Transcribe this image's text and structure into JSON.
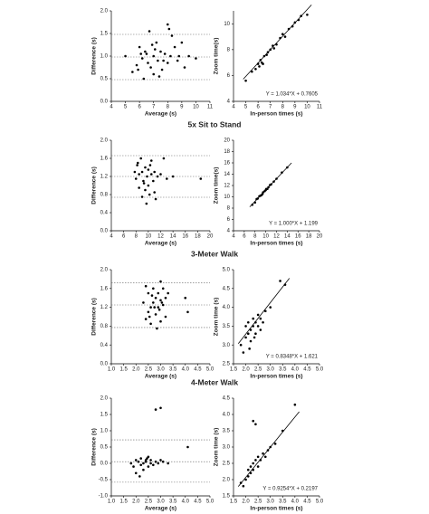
{
  "chart_data": [
    {
      "type": "scatter",
      "x_label": "Average (s)",
      "y_label": "Difference (s)",
      "xlim": [
        4,
        11
      ],
      "xticks": [
        4,
        5,
        6,
        7,
        8,
        9,
        10,
        11
      ],
      "ylim": [
        0,
        2
      ],
      "yticks": [
        {
          "value": 0,
          "label": "0.0"
        },
        0.5,
        {
          "value": 1,
          "label": "1.0"
        },
        1.5,
        {
          "value": 2,
          "label": "2.0"
        }
      ],
      "reference_lines": [
        1.48,
        0.98,
        0.48
      ],
      "x": [
        5,
        5.5,
        5.8,
        6,
        6.2,
        6.3,
        6.5,
        6.7,
        6.8,
        7,
        7,
        7.2,
        7.3,
        7.5,
        7.6,
        7.8,
        8,
        8,
        8.2,
        8.3,
        8.5,
        8.7,
        9,
        9.2,
        9.5,
        10,
        6.1,
        6.6,
        7.1,
        7.7,
        8.1,
        5.9,
        6.4,
        7.4,
        8.8,
        6.9
      ],
      "values": [
        1.0,
        0.65,
        0.8,
        1.2,
        0.95,
        0.5,
        1.05,
        1.55,
        0.75,
        1.0,
        0.6,
        1.3,
        0.9,
        1.1,
        0.7,
        1.05,
        1.7,
        0.85,
        1.0,
        1.45,
        1.2,
        0.9,
        1.3,
        0.75,
        1.0,
        0.95,
        1.05,
        0.85,
        1.15,
        0.9,
        1.6,
        0.7,
        1.1,
        0.55,
        1.0,
        1.25
      ]
    },
    {
      "type": "scatter",
      "x_label": "In-person times (s)",
      "y_label": "Zoom time(s)",
      "xlim": [
        4,
        11
      ],
      "xticks": [
        4,
        5,
        6,
        7,
        8,
        9,
        10,
        11
      ],
      "ylim": [
        4,
        11
      ],
      "yticks": [
        4,
        6,
        8,
        10
      ],
      "fit": {
        "slope": 1.034,
        "intercept": 0.7605
      },
      "annotation": "Y = 1.034*X + 0.7605",
      "x": [
        5,
        5.5,
        5.8,
        6,
        6.1,
        6.2,
        6.3,
        6.5,
        6.7,
        7,
        7.2,
        7.5,
        7.8,
        8,
        8.2,
        8.5,
        8.8,
        9,
        9.3,
        9.5,
        10,
        6.4,
        6.8,
        7.3
      ],
      "values": [
        5.6,
        6.3,
        6.5,
        6.9,
        6.7,
        7.2,
        7.0,
        7.5,
        7.6,
        8.0,
        8.3,
        8.4,
        8.9,
        9.2,
        9.0,
        9.6,
        9.8,
        10.1,
        10.3,
        10.6,
        10.7,
        6.9,
        7.8,
        8.1
      ]
    },
    {
      "type": "scatter",
      "title": "5x Sit to Stand",
      "x_label": "Average (s)",
      "y_label": "Difference (s)",
      "xlim": [
        4,
        20
      ],
      "xticks": [
        4,
        6,
        8,
        10,
        12,
        14,
        16,
        18,
        20
      ],
      "ylim": [
        0,
        2
      ],
      "yticks": [
        {
          "value": 0,
          "label": "0.0"
        },
        0.4,
        0.8,
        1.2,
        1.6,
        {
          "value": 2,
          "label": "2.0"
        }
      ],
      "reference_lines": [
        1.66,
        1.2,
        0.74
      ],
      "x": [
        7.8,
        8,
        8.2,
        8.5,
        8.5,
        8.8,
        9,
        9,
        9.2,
        9.5,
        9.5,
        9.8,
        10,
        10,
        10.2,
        10.5,
        10.5,
        10.8,
        11,
        11,
        11.5,
        12,
        12.5,
        13,
        14,
        9.3,
        9.7,
        10.3,
        8.3,
        11.2,
        18.5
      ],
      "values": [
        1.3,
        1.15,
        1.45,
        1.25,
        0.95,
        1.6,
        1.3,
        0.75,
        1.1,
        1.4,
        0.9,
        1.2,
        1.35,
        1.0,
        0.8,
        1.25,
        1.55,
        1.1,
        1.3,
        0.85,
        1.2,
        1.25,
        1.6,
        1.15,
        1.2,
        1.05,
        0.6,
        1.45,
        1.5,
        0.7,
        1.15
      ]
    },
    {
      "type": "scatter",
      "x_label": "In-person times (s)",
      "y_label": "Zoom time(s)",
      "xlim": [
        4,
        20
      ],
      "xticks": [
        4,
        6,
        8,
        10,
        12,
        14,
        16,
        18,
        20
      ],
      "ylim": [
        4,
        20
      ],
      "yticks": [
        4,
        6,
        8,
        10,
        12,
        14,
        16,
        18,
        20
      ],
      "fit": {
        "slope": 1.0,
        "intercept": 1.199
      },
      "annotation": "Y = 1.000*X + 1.199",
      "x": [
        7.5,
        8,
        8.3,
        8.5,
        8.8,
        9,
        9.2,
        9.5,
        9.8,
        10,
        10.3,
        10.5,
        10.8,
        11,
        11.5,
        12,
        13,
        14,
        9.4,
        10.1
      ],
      "values": [
        8.6,
        9.0,
        9.6,
        9.7,
        10.1,
        10.2,
        10.3,
        10.8,
        11.0,
        11.2,
        11.4,
        11.7,
        12.1,
        12.2,
        12.7,
        13.2,
        14.3,
        15.2,
        10.5,
        11.4
      ]
    },
    {
      "type": "scatter",
      "title": "3-Meter Walk",
      "x_label": "Average (s)",
      "y_label": "Difference (s)",
      "xlim": [
        1,
        5
      ],
      "xticks": [
        {
          "value": 1,
          "label": "1.0"
        },
        1.5,
        {
          "value": 2,
          "label": "2.0"
        },
        2.5,
        {
          "value": 3,
          "label": "3.0"
        },
        3.5,
        {
          "value": 4,
          "label": "4.0"
        },
        4.5,
        {
          "value": 5,
          "label": "5.0"
        }
      ],
      "ylim": [
        0,
        2
      ],
      "yticks": [
        {
          "value": 0,
          "label": "0.0"
        },
        0.4,
        0.8,
        1.2,
        1.6,
        {
          "value": 2,
          "label": "2.0"
        }
      ],
      "reference_lines": [
        1.72,
        1.25,
        0.77
      ],
      "x": [
        2.3,
        2.4,
        2.5,
        2.5,
        2.6,
        2.6,
        2.7,
        2.7,
        2.8,
        2.8,
        2.9,
        2.9,
        3.0,
        3.0,
        3.0,
        3.1,
        3.1,
        3.2,
        3.2,
        3.3,
        2.4,
        2.65,
        2.85,
        2.95,
        3.05,
        4.0,
        4.1,
        2.55,
        2.75
      ],
      "values": [
        1.3,
        0.95,
        1.5,
        1.1,
        1.2,
        0.85,
        1.6,
        1.3,
        1.4,
        1.05,
        1.5,
        1.2,
        1.75,
        1.35,
        0.9,
        1.25,
        1.6,
        1.0,
        1.4,
        1.5,
        1.65,
        1.45,
        0.75,
        1.15,
        1.3,
        1.4,
        1.1,
        1.0,
        1.2
      ]
    },
    {
      "type": "scatter",
      "x_label": "In-person times (s)",
      "y_label": "Zoom time (s)",
      "xlim": [
        1.5,
        5
      ],
      "xticks": [
        1.5,
        {
          "value": 2,
          "label": "2.0"
        },
        2.5,
        {
          "value": 3,
          "label": "3.0"
        },
        3.5,
        {
          "value": 4,
          "label": "4.0"
        },
        4.5,
        {
          "value": 5,
          "label": "5.0"
        }
      ],
      "ylim": [
        2.5,
        5
      ],
      "yticks": [
        2.5,
        {
          "value": 3,
          "label": "3.0"
        },
        3.5,
        {
          "value": 4,
          "label": "4.0"
        },
        4.5,
        {
          "value": 5,
          "label": "5.0"
        }
      ],
      "fit": {
        "slope": 0.8348,
        "intercept": 1.621
      },
      "annotation": "Y = 0.8348*X + 1.621",
      "x": [
        1.8,
        1.9,
        2.0,
        2.0,
        2.1,
        2.1,
        2.2,
        2.2,
        2.3,
        2.3,
        2.4,
        2.4,
        2.5,
        2.5,
        2.6,
        2.6,
        2.7,
        2.8,
        3.0,
        3.4,
        3.6,
        2.15,
        2.35
      ],
      "values": [
        3.0,
        2.8,
        3.5,
        3.2,
        3.3,
        3.6,
        3.4,
        3.1,
        3.7,
        3.5,
        3.6,
        3.3,
        3.8,
        3.5,
        3.7,
        3.4,
        3.6,
        3.9,
        4.0,
        4.7,
        4.6,
        2.9,
        3.2
      ]
    },
    {
      "type": "scatter",
      "title": "4-Meter Walk",
      "x_label": "Average (s)",
      "y_label": "Difference (s)",
      "xlim": [
        1,
        5
      ],
      "xticks": [
        {
          "value": 1,
          "label": "1.0"
        },
        1.5,
        {
          "value": 2,
          "label": "2.0"
        },
        2.5,
        {
          "value": 3,
          "label": "3.0"
        },
        3.5,
        {
          "value": 4,
          "label": "4.0"
        },
        4.5,
        {
          "value": 5,
          "label": "5.0"
        }
      ],
      "ylim": [
        -1,
        2
      ],
      "yticks": [
        {
          "value": -1,
          "label": "-1.0"
        },
        -0.5,
        {
          "value": 0,
          "label": "0.0"
        },
        0.5,
        {
          "value": 1,
          "label": "1.0"
        },
        1.5,
        {
          "value": 2,
          "label": "2.0"
        }
      ],
      "reference_lines": [
        0.72,
        0.05,
        -0.58
      ],
      "x": [
        1.8,
        1.9,
        2.0,
        2.0,
        2.1,
        2.2,
        2.2,
        2.3,
        2.3,
        2.4,
        2.4,
        2.5,
        2.5,
        2.6,
        2.6,
        2.7,
        2.8,
        2.9,
        3.0,
        3.1,
        3.3,
        2.8,
        3.0,
        4.1,
        2.15,
        2.45
      ],
      "values": [
        0.0,
        -0.1,
        0.1,
        -0.3,
        0.05,
        -0.05,
        0.15,
        0.0,
        -0.2,
        0.1,
        0.05,
        -0.1,
        0.2,
        0.0,
        0.1,
        -0.05,
        0.05,
        0.0,
        0.1,
        0.05,
        0.0,
        1.65,
        1.7,
        0.5,
        -0.4,
        0.15
      ]
    },
    {
      "type": "scatter",
      "x_label": "In-person times (s)",
      "y_label": "Zoom time (s)",
      "xlim": [
        1.5,
        5
      ],
      "xticks": [
        1.5,
        {
          "value": 2,
          "label": "2.0"
        },
        2.5,
        {
          "value": 3,
          "label": "3.0"
        },
        3.5,
        {
          "value": 4,
          "label": "4.0"
        },
        4.5,
        {
          "value": 5,
          "label": "5.0"
        }
      ],
      "ylim": [
        1.5,
        4.5
      ],
      "yticks": [
        1.5,
        {
          "value": 2,
          "label": "2.0"
        },
        2.5,
        {
          "value": 3,
          "label": "3.0"
        },
        3.5,
        {
          "value": 4,
          "label": "4.0"
        },
        4.5
      ],
      "fit": {
        "slope": 0.9254,
        "intercept": 0.2197
      },
      "annotation": "Y = 0.9254*X + 0.2197",
      "x": [
        1.8,
        1.9,
        2.0,
        2.1,
        2.1,
        2.2,
        2.2,
        2.3,
        2.3,
        2.4,
        2.5,
        2.5,
        2.6,
        2.7,
        2.8,
        2.9,
        3.0,
        3.2,
        3.5,
        4.0,
        2.3,
        2.4
      ],
      "values": [
        1.9,
        1.8,
        2.0,
        2.1,
        2.3,
        2.2,
        2.4,
        2.3,
        2.5,
        2.6,
        2.4,
        2.7,
        2.6,
        2.8,
        2.7,
        2.9,
        3.0,
        3.1,
        3.5,
        4.3,
        3.8,
        3.7
      ]
    }
  ]
}
